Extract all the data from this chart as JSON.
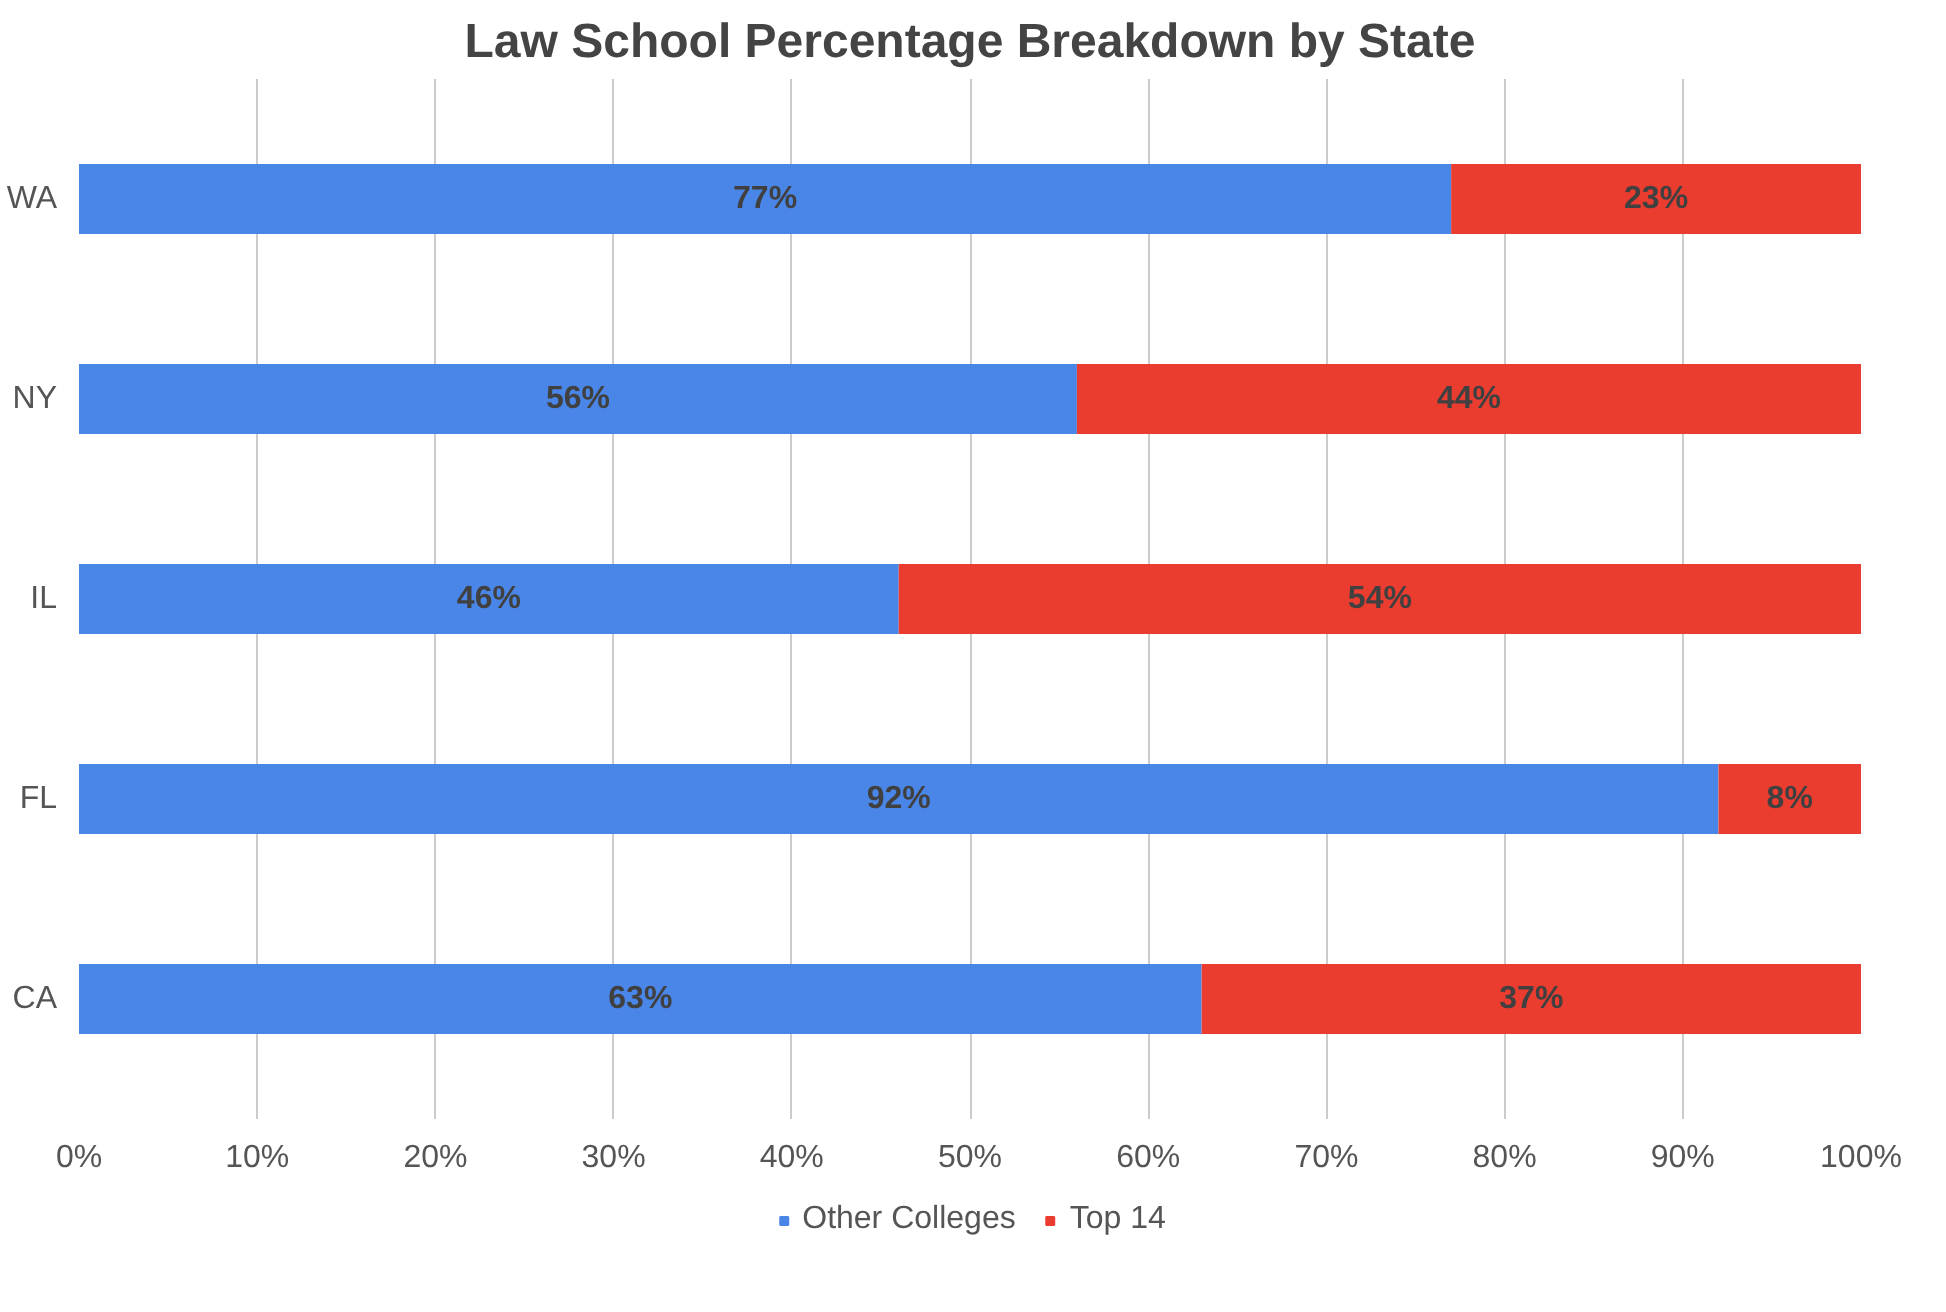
{
  "chart_data": {
    "type": "bar",
    "orientation": "horizontal",
    "stacked": true,
    "title": "Law School Percentage Breakdown by State",
    "categories": [
      "WA",
      "NY",
      "IL",
      "FL",
      "CA"
    ],
    "series": [
      {
        "name": "Other Colleges",
        "color": "#4a86e8",
        "values": [
          77,
          56,
          46,
          92,
          63
        ],
        "value_labels": [
          "77%",
          "56%",
          "46%",
          "92%",
          "63%"
        ]
      },
      {
        "name": "Top 14",
        "color": "#ea3d30",
        "values": [
          23,
          44,
          54,
          8,
          37
        ],
        "value_labels": [
          "23%",
          "44%",
          "54%",
          "8%",
          "37%"
        ]
      }
    ],
    "xlim": [
      0,
      100
    ],
    "xticks": [
      {
        "value": 0,
        "label": "0%"
      },
      {
        "value": 10,
        "label": "10%"
      },
      {
        "value": 20,
        "label": "20%"
      },
      {
        "value": 30,
        "label": "30%"
      },
      {
        "value": 40,
        "label": "40%"
      },
      {
        "value": 50,
        "label": "50%"
      },
      {
        "value": 60,
        "label": "60%"
      },
      {
        "value": 70,
        "label": "70%"
      },
      {
        "value": 80,
        "label": "80%"
      },
      {
        "value": 90,
        "label": "90%"
      },
      {
        "value": 100,
        "label": "100%"
      }
    ],
    "grid": "x",
    "legend": "bottom"
  }
}
